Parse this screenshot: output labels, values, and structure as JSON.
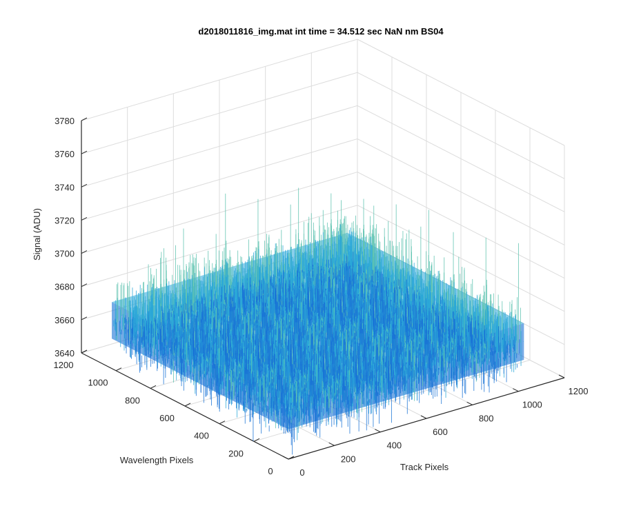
{
  "chart_data": {
    "type": "surface",
    "title": "d2018011816_img.mat int time = 34.512 sec  NaN nm BS04",
    "xlabel": "Track Pixels",
    "ylabel": "Wavelength Pixels",
    "zlabel": "Signal (ADU)",
    "xlim": [
      0,
      1200
    ],
    "ylim": [
      0,
      1200
    ],
    "zlim": [
      3640,
      3780
    ],
    "x_ticks": [
      "0",
      "200",
      "400",
      "600",
      "800",
      "1000",
      "1200"
    ],
    "y_ticks": [
      "0",
      "200",
      "400",
      "600",
      "800",
      "1000",
      "1200"
    ],
    "z_ticks": [
      "3640",
      "3660",
      "3680",
      "3700",
      "3720",
      "3740",
      "3760",
      "3780"
    ],
    "data_extent": {
      "x": [
        0,
        1024
      ],
      "y": [
        0,
        1024
      ]
    },
    "signal_mean": 3672,
    "signal_range_typical": [
      3648,
      3705
    ],
    "signal_spike_max": 3755,
    "grid": true,
    "colormap": "parula",
    "colors": {
      "surface_low": "#1a73d6",
      "surface_mid": "#2aa7d8",
      "surface_high": "#5fc3b0",
      "surface_peak": "#e6e64a",
      "axis": "#262626",
      "grid": "#dcdcdc"
    }
  }
}
